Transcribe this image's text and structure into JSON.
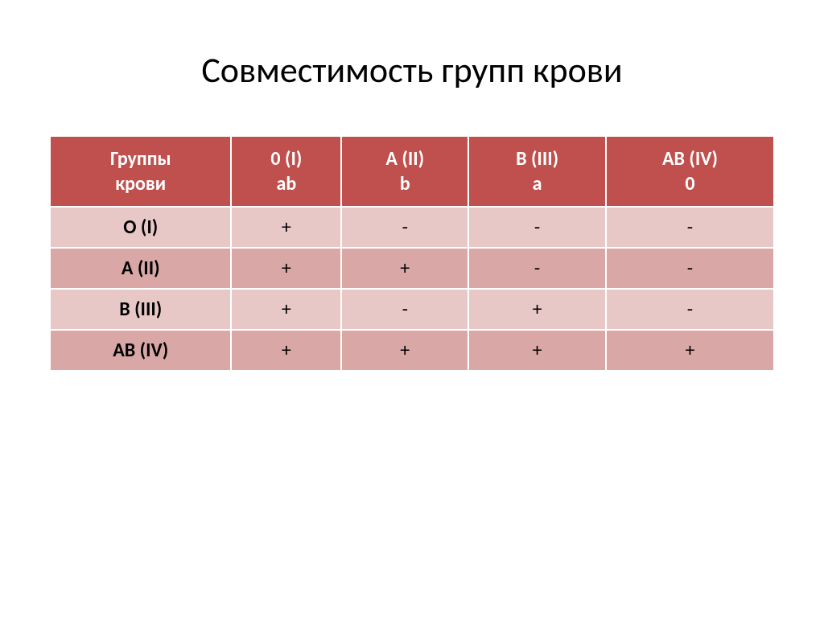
{
  "title": "Совместимость групп крови",
  "table": {
    "type": "table",
    "header_bg_color": "#c0504d",
    "header_text_color": "#ffffff",
    "row_light_color": "#e8c8c7",
    "row_dark_color": "#d9a8a6",
    "border_color": "#ffffff",
    "title_fontsize": 44,
    "header_fontsize": 24,
    "cell_fontsize": 24,
    "columns": [
      {
        "line1": "Группы",
        "line2": "крови"
      },
      {
        "line1": "0 (I)",
        "line2": "ab"
      },
      {
        "line1": "A (II)",
        "line2": "b"
      },
      {
        "line1": "B (III)",
        "line2": "a"
      },
      {
        "line1": "AB (IV)",
        "line2": "0"
      }
    ],
    "rows": [
      {
        "label": "O (I)",
        "cells": [
          "+",
          "-",
          "-",
          "-"
        ]
      },
      {
        "label": "A (II)",
        "cells": [
          "+",
          "+",
          "-",
          "-"
        ]
      },
      {
        "label": "B (III)",
        "cells": [
          "+",
          "-",
          "+",
          "-"
        ]
      },
      {
        "label": "AB (IV)",
        "cells": [
          "+",
          "+",
          "+",
          "+"
        ]
      }
    ]
  }
}
